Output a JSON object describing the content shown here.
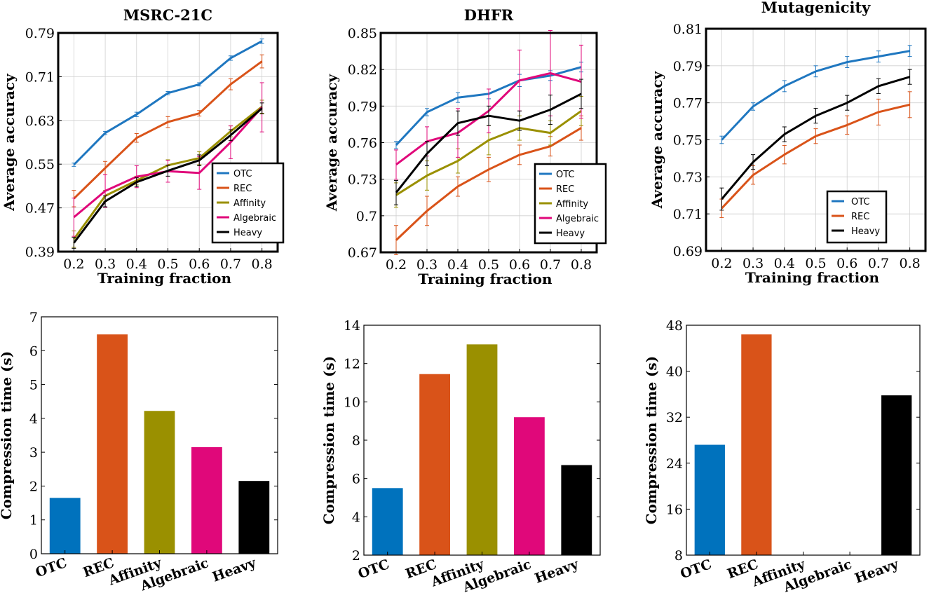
{
  "figure": {
    "x_label": "Training fraction",
    "y_label_line": "Average accuracy",
    "y_label_bar": "Compression time (s)"
  },
  "chart_data": [
    {
      "type": "line",
      "title": "MSRC-21C",
      "xlabel": "Training fraction",
      "ylabel": "Average accuracy",
      "x": [
        0.2,
        0.3,
        0.4,
        0.5,
        0.6,
        0.7,
        0.8
      ],
      "xticks": [
        "0.2",
        "0.3",
        "0.4",
        "0.5",
        "0.6",
        "0.7",
        "0.8"
      ],
      "ylim": [
        0.39,
        0.79
      ],
      "yticks": [
        0.39,
        0.47,
        0.55,
        0.63,
        0.71,
        0.79
      ],
      "ytick_labels": [
        "0.39",
        "0.47",
        "0.55",
        "0.63",
        "0.71",
        "0.79"
      ],
      "legend_position": "bottom-right",
      "series": [
        {
          "name": "OTC",
          "color": "#1f77c0",
          "values": [
            0.549,
            0.607,
            0.641,
            0.68,
            0.696,
            0.744,
            0.775
          ],
          "err": [
            0.003,
            0.003,
            0.004,
            0.003,
            0.003,
            0.004,
            0.004
          ]
        },
        {
          "name": "REC",
          "color": "#d95319",
          "values": [
            0.487,
            0.543,
            0.598,
            0.627,
            0.643,
            0.696,
            0.738
          ],
          "err": [
            0.015,
            0.012,
            0.008,
            0.01,
            0.005,
            0.01,
            0.012
          ]
        },
        {
          "name": "Affinity",
          "color": "#9a9000",
          "values": [
            0.413,
            0.492,
            0.52,
            0.548,
            0.561,
            0.61,
            0.655
          ],
          "err": [
            0.015,
            0.01,
            0.008,
            0.01,
            0.012,
            0.01,
            0.012
          ]
        },
        {
          "name": "Algebraic",
          "color": "#e0087a",
          "values": [
            0.453,
            0.501,
            0.527,
            0.537,
            0.534,
            0.59,
            0.654
          ],
          "err": [
            0.035,
            0.03,
            0.02,
            0.02,
            0.03,
            0.03,
            0.045
          ]
        },
        {
          "name": "Heavy",
          "color": "#000000",
          "values": [
            0.406,
            0.482,
            0.517,
            0.538,
            0.557,
            0.603,
            0.652
          ],
          "err": [
            0.01,
            0.01,
            0.008,
            0.01,
            0.01,
            0.01,
            0.01
          ]
        }
      ]
    },
    {
      "type": "line",
      "title": "DHFR",
      "xlabel": "Training fraction",
      "ylabel": "Average accuracy",
      "x": [
        0.2,
        0.3,
        0.4,
        0.5,
        0.6,
        0.7,
        0.8
      ],
      "xticks": [
        "0.2",
        "0.3",
        "0.4",
        "0.5",
        "0.6",
        "0.7",
        "0.8"
      ],
      "ylim": [
        0.67,
        0.85
      ],
      "yticks": [
        0.67,
        0.7,
        0.73,
        0.76,
        0.79,
        0.82,
        0.85
      ],
      "ytick_labels": [
        "0.67",
        "0.7",
        "0.73",
        "0.76",
        "0.79",
        "0.82",
        "0.85"
      ],
      "legend_position": "bottom-right",
      "series": [
        {
          "name": "OTC",
          "color": "#1f77c0",
          "values": [
            0.758,
            0.785,
            0.797,
            0.8,
            0.811,
            0.815,
            0.822
          ],
          "err": [
            0.003,
            0.003,
            0.004,
            0.004,
            0.005,
            0.004,
            0.004
          ]
        },
        {
          "name": "REC",
          "color": "#d95319",
          "values": [
            0.68,
            0.704,
            0.724,
            0.738,
            0.75,
            0.757,
            0.772
          ],
          "err": [
            0.012,
            0.012,
            0.008,
            0.01,
            0.008,
            0.008,
            0.01
          ]
        },
        {
          "name": "Affinity",
          "color": "#9a9000",
          "values": [
            0.717,
            0.733,
            0.745,
            0.762,
            0.772,
            0.768,
            0.786
          ],
          "err": [
            0.01,
            0.012,
            0.01,
            0.012,
            0.01,
            0.01,
            0.012
          ]
        },
        {
          "name": "Algebraic",
          "color": "#e0087a",
          "values": [
            0.742,
            0.761,
            0.768,
            0.786,
            0.811,
            0.817,
            0.81
          ],
          "err": [
            0.012,
            0.012,
            0.02,
            0.018,
            0.025,
            0.035,
            0.03
          ]
        },
        {
          "name": "Heavy",
          "color": "#000000",
          "values": [
            0.719,
            0.751,
            0.776,
            0.782,
            0.778,
            0.787,
            0.8
          ],
          "err": [
            0.01,
            0.01,
            0.01,
            0.008,
            0.008,
            0.012,
            0.012
          ]
        }
      ]
    },
    {
      "type": "line",
      "title": "Mutagenicity",
      "xlabel": "Training fraction",
      "ylabel": "Average accuracy",
      "x": [
        0.2,
        0.3,
        0.4,
        0.5,
        0.6,
        0.7,
        0.8
      ],
      "xticks": [
        "0.2",
        "0.3",
        "0.4",
        "0.5",
        "0.6",
        "0.7",
        "0.8"
      ],
      "ylim": [
        0.69,
        0.81
      ],
      "yticks": [
        0.69,
        0.71,
        0.73,
        0.75,
        0.77,
        0.79,
        0.81
      ],
      "ytick_labels": [
        "0.69",
        "0.71",
        "0.73",
        "0.75",
        "0.77",
        "0.79",
        "0.81"
      ],
      "legend_position": "bottom-right",
      "series": [
        {
          "name": "OTC",
          "color": "#1f77c0",
          "values": [
            0.75,
            0.768,
            0.779,
            0.787,
            0.792,
            0.795,
            0.798
          ],
          "err": [
            0.002,
            0.002,
            0.003,
            0.003,
            0.003,
            0.003,
            0.003
          ]
        },
        {
          "name": "REC",
          "color": "#d95319",
          "values": [
            0.713,
            0.731,
            0.742,
            0.752,
            0.758,
            0.765,
            0.769
          ],
          "err": [
            0.005,
            0.005,
            0.005,
            0.004,
            0.005,
            0.007,
            0.007
          ]
        },
        {
          "name": "Heavy",
          "color": "#000000",
          "values": [
            0.718,
            0.738,
            0.753,
            0.763,
            0.77,
            0.779,
            0.784
          ],
          "err": [
            0.006,
            0.004,
            0.004,
            0.004,
            0.004,
            0.004,
            0.004
          ]
        }
      ]
    },
    {
      "type": "bar",
      "title": "",
      "xlabel": "",
      "ylabel": "Compression time (s)",
      "categories": [
        "OTC",
        "REC",
        "Affinity",
        "Algebraic",
        "Heavy"
      ],
      "colors": [
        "#0072bd",
        "#d95319",
        "#9a9000",
        "#e0087a",
        "#000000"
      ],
      "values": [
        1.65,
        6.48,
        4.22,
        3.15,
        2.15
      ],
      "ylim": [
        0,
        7
      ],
      "yticks": [
        0,
        1,
        2,
        3,
        4,
        5,
        6,
        7
      ],
      "ytick_labels": [
        "0",
        "1",
        "2",
        "3",
        "4",
        "5",
        "6",
        "7"
      ]
    },
    {
      "type": "bar",
      "title": "",
      "xlabel": "",
      "ylabel": "Compression time (s)",
      "categories": [
        "OTC",
        "REC",
        "Affinity",
        "Algebraic",
        "Heavy"
      ],
      "colors": [
        "#0072bd",
        "#d95319",
        "#9a9000",
        "#e0087a",
        "#000000"
      ],
      "values": [
        5.5,
        11.45,
        13.0,
        9.2,
        6.7
      ],
      "ylim": [
        2,
        14
      ],
      "yticks": [
        2,
        4,
        6,
        8,
        10,
        12,
        14
      ],
      "ytick_labels": [
        "2",
        "4",
        "6",
        "8",
        "10",
        "12",
        "14"
      ]
    },
    {
      "type": "bar",
      "title": "",
      "xlabel": "",
      "ylabel": "Compression time (s)",
      "categories": [
        "OTC",
        "REC",
        "Affinity",
        "Algebraic",
        "Heavy"
      ],
      "colors": [
        "#0072bd",
        "#d95319",
        "#9a9000",
        "#e0087a",
        "#000000"
      ],
      "values": [
        27.2,
        46.4,
        null,
        null,
        35.8
      ],
      "ylim": [
        8,
        48
      ],
      "yticks": [
        8,
        16,
        24,
        32,
        40,
        48
      ],
      "ytick_labels": [
        "8",
        "16",
        "24",
        "32",
        "40",
        "48"
      ]
    }
  ]
}
